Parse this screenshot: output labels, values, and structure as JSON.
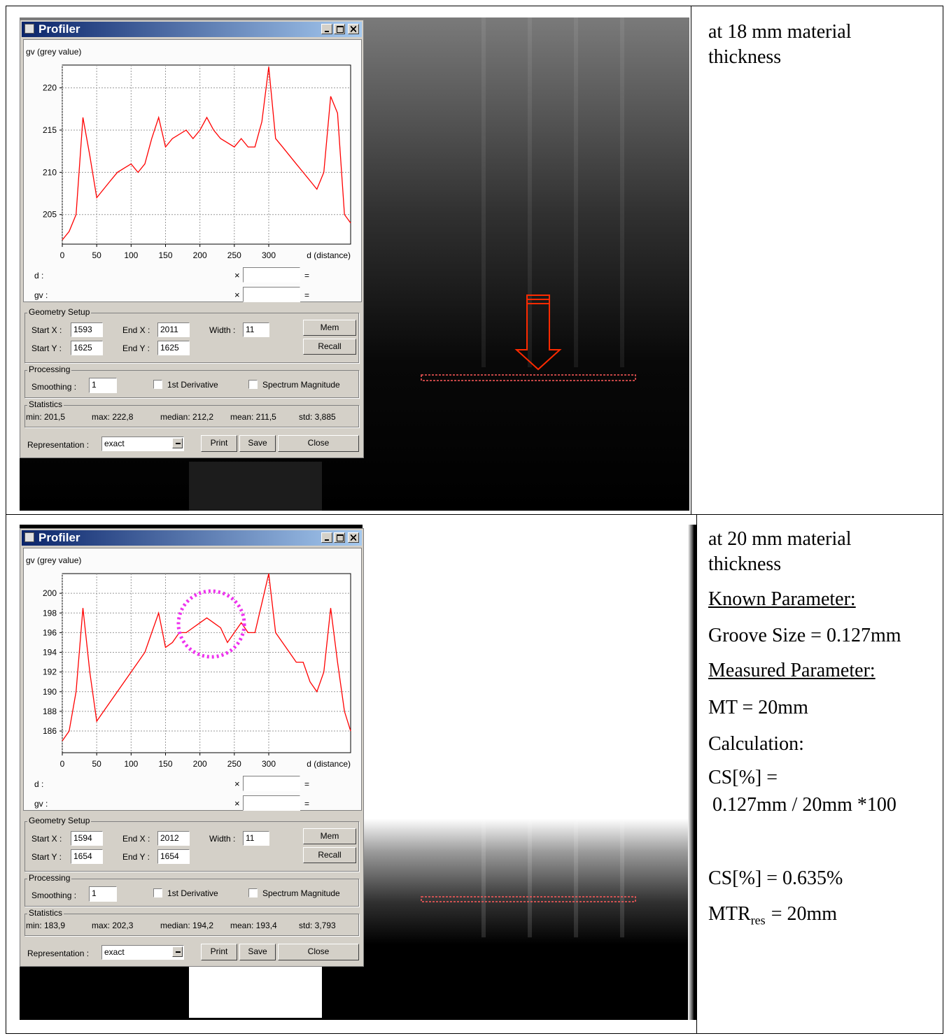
{
  "rows": [
    {
      "profiler": {
        "title": "Profiler",
        "chart_data": {
          "type": "line",
          "y_label": "gv (grey value)",
          "x_label": "d (distance)",
          "x": [
            0,
            10,
            20,
            30,
            40,
            50,
            60,
            70,
            80,
            90,
            100,
            110,
            120,
            130,
            140,
            150,
            160,
            170,
            180,
            190,
            200,
            210,
            220,
            230,
            240,
            250,
            260,
            270,
            280,
            290,
            300,
            310,
            320,
            330,
            340,
            350,
            360,
            370,
            380,
            390,
            400,
            410,
            419
          ],
          "values": [
            202,
            203,
            205,
            216.5,
            212,
            207,
            208,
            209,
            210,
            210.5,
            211,
            210,
            211,
            214,
            216.5,
            213,
            214,
            214.5,
            215,
            214,
            215,
            216.5,
            215,
            214,
            213.5,
            213,
            214,
            213,
            213,
            216,
            222.5,
            214,
            213,
            212,
            211,
            210,
            209,
            208,
            210,
            219,
            217,
            205,
            204
          ],
          "color": "#ff0000",
          "xlim": [
            0,
            419
          ],
          "ylim": [
            201.5,
            222.7
          ],
          "xticks": [
            0,
            50,
            100,
            150,
            200,
            250,
            300
          ],
          "yticks": [
            205,
            210,
            215,
            220
          ],
          "grid": true
        },
        "readout": {
          "d_label": "d :",
          "gv_label": "gv :",
          "times": "×",
          "equals": "="
        },
        "geometry": {
          "title": "Geometry Setup",
          "start_x_label": "Start X :",
          "start_x": 1593,
          "end_x_label": "End X :",
          "end_x": 2011,
          "width_label": "Width :",
          "width": 11,
          "start_y_label": "Start Y :",
          "start_y": 1625,
          "end_y_label": "End Y :",
          "end_y": 1625,
          "mem": "Mem",
          "recall": "Recall"
        },
        "processing": {
          "title": "Processing",
          "smoothing_label": "Smoothing :",
          "smoothing": 1,
          "derivative": "1st Derivative",
          "spectrum": "Spectrum Magnitude"
        },
        "statistics": {
          "title": "Statistics",
          "min": "min: 201,5",
          "max": "max: 222,8",
          "median": "median: 212,2",
          "mean": "mean: 211,5",
          "std": "std: 3,885"
        },
        "representation": {
          "label": "Representation :",
          "value": "exact",
          "print": "Print",
          "save": "Save",
          "close": "Close"
        }
      },
      "caption": {
        "heading": "at 18 mm material thickness"
      }
    },
    {
      "profiler": {
        "title": "Profiler",
        "chart_data": {
          "type": "line",
          "y_label": "gv (grey value)",
          "x_label": "d (distance)",
          "x": [
            0,
            10,
            20,
            30,
            40,
            50,
            60,
            70,
            80,
            90,
            100,
            110,
            120,
            130,
            140,
            150,
            160,
            170,
            180,
            190,
            200,
            210,
            220,
            230,
            240,
            250,
            260,
            270,
            280,
            290,
            300,
            310,
            320,
            330,
            340,
            350,
            360,
            370,
            380,
            390,
            400,
            410,
            419
          ],
          "values": [
            185,
            186,
            190,
            198.5,
            192,
            187,
            188,
            189,
            190,
            191,
            192,
            193,
            194,
            196,
            198,
            194.5,
            195,
            196,
            196,
            196.5,
            197,
            197.5,
            197,
            196.5,
            195,
            196,
            197,
            196,
            196,
            199,
            202,
            196,
            195,
            194,
            193,
            193,
            191,
            190,
            192,
            198.5,
            193,
            188,
            186
          ],
          "color": "#ff0000",
          "xlim": [
            0,
            419
          ],
          "ylim": [
            183.8,
            202
          ],
          "xticks": [
            0,
            50,
            100,
            150,
            200,
            250,
            300
          ],
          "yticks": [
            186,
            188,
            190,
            192,
            194,
            196,
            198,
            200
          ],
          "grid": true
        },
        "readout": {
          "d_label": "d :",
          "gv_label": "gv :",
          "times": "×",
          "equals": "="
        },
        "geometry": {
          "title": "Geometry Setup",
          "start_x_label": "Start X :",
          "start_x": 1594,
          "end_x_label": "End X :",
          "end_x": 2012,
          "width_label": "Width :",
          "width": 11,
          "start_y_label": "Start Y :",
          "start_y": 1654,
          "end_y_label": "End Y :",
          "end_y": 1654,
          "mem": "Mem",
          "recall": "Recall"
        },
        "processing": {
          "title": "Processing",
          "smoothing_label": "Smoothing :",
          "smoothing": 1,
          "derivative": "1st Derivative",
          "spectrum": "Spectrum Magnitude"
        },
        "statistics": {
          "title": "Statistics",
          "min": "min: 183,9",
          "max": "max: 202,3",
          "median": "median: 194,2",
          "mean": "mean: 193,4",
          "std": "std: 3,793"
        },
        "representation": {
          "label": "Representation :",
          "value": "exact",
          "print": "Print",
          "save": "Save",
          "close": "Close"
        }
      },
      "caption": {
        "heading": "at 20 mm material thickness",
        "known_title": "Known Parameter:",
        "known": "Groove Size = 0.127mm",
        "measured_title": "Measured Parameter:",
        "measured": "MT = 20mm",
        "calc_title": "Calculation:",
        "calc_1": "CS[%] =",
        "calc_2": "0.127mm / 20mm *100",
        "result": "CS[%] = 0.635%",
        "mtr": "MTR",
        "mtr_sub": "res",
        "mtr_rest": "= 20mm"
      }
    }
  ]
}
